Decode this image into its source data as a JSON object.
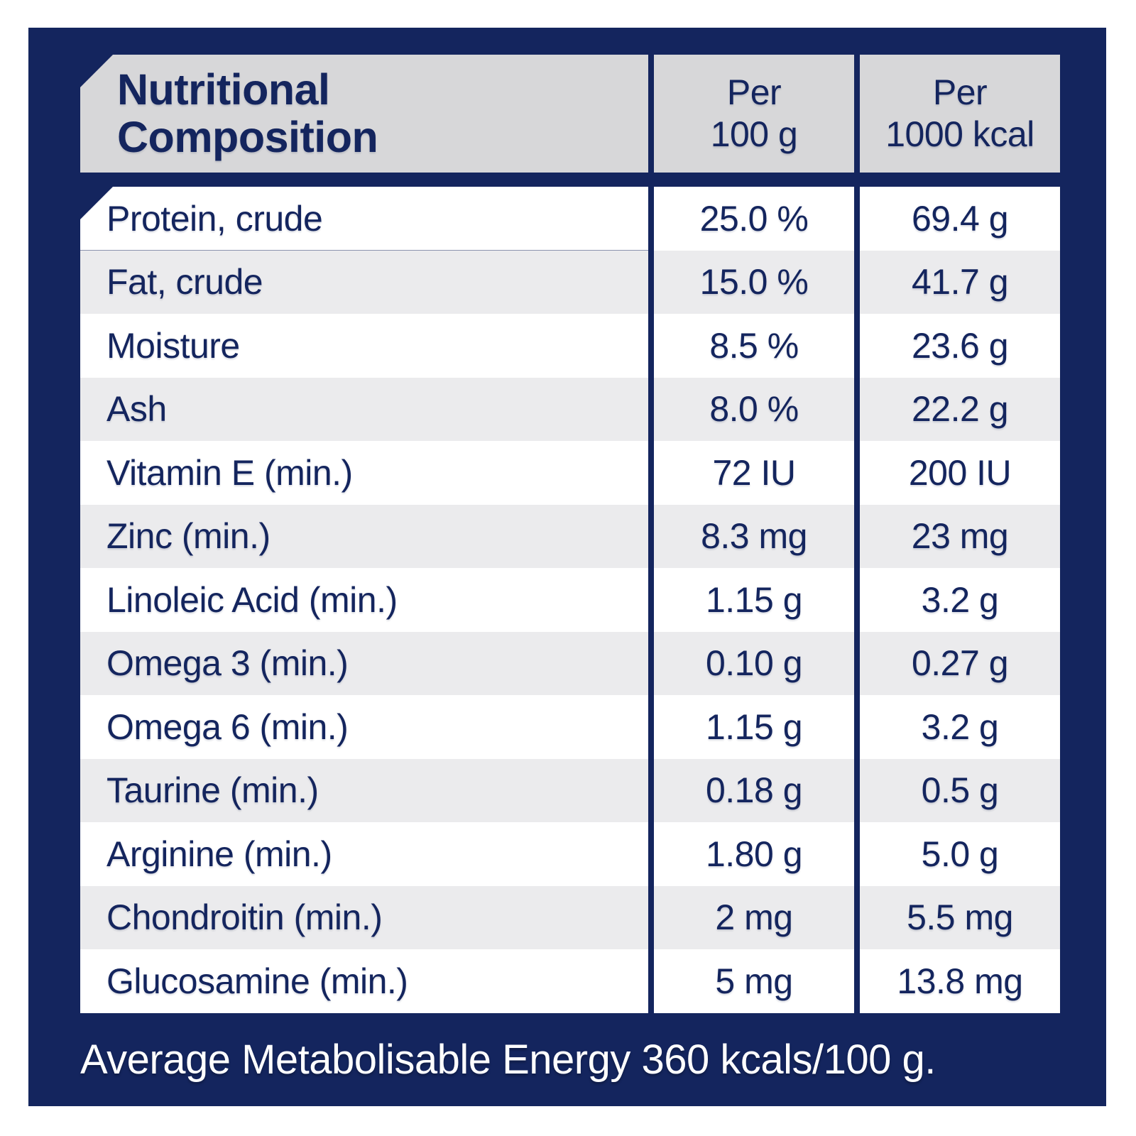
{
  "colors": {
    "panel_navy": "#14255E",
    "header_gray": "#D7D7D9",
    "row_gray": "#EBEBED",
    "row_white": "#FFFFFF",
    "text_navy": "#14255E",
    "footer_text_color": "#FFFFFF"
  },
  "table": {
    "header": {
      "title": "Nutritional Composition",
      "title_line1": "Nutritional",
      "title_line2": "Composition",
      "cols": [
        {
          "line1": "Per",
          "line2": "100 g"
        },
        {
          "line1": "Per",
          "line2": "1000 kcal"
        }
      ]
    },
    "rows": [
      {
        "label": "Protein, crude",
        "per_100g": "25.0 %",
        "per_1000kcal": "69.4 g"
      },
      {
        "label": "Fat, crude",
        "per_100g": "15.0 %",
        "per_1000kcal": "41.7 g"
      },
      {
        "label": "Moisture",
        "per_100g": "8.5 %",
        "per_1000kcal": "23.6 g"
      },
      {
        "label": "Ash",
        "per_100g": "8.0 %",
        "per_1000kcal": "22.2 g"
      },
      {
        "label": "Vitamin E (min.)",
        "per_100g": "72 IU",
        "per_1000kcal": "200 IU"
      },
      {
        "label": "Zinc (min.)",
        "per_100g": "8.3 mg",
        "per_1000kcal": "23 mg"
      },
      {
        "label": "Linoleic Acid (min.)",
        "per_100g": "1.15 g",
        "per_1000kcal": "3.2 g"
      },
      {
        "label": "Omega 3 (min.)",
        "per_100g": "0.10 g",
        "per_1000kcal": "0.27 g"
      },
      {
        "label": "Omega 6 (min.)",
        "per_100g": "1.15 g",
        "per_1000kcal": "3.2 g"
      },
      {
        "label": "Taurine (min.)",
        "per_100g": "0.18 g",
        "per_1000kcal": "0.5 g"
      },
      {
        "label": "Arginine (min.)",
        "per_100g": "1.80 g",
        "per_1000kcal": "5.0 g"
      },
      {
        "label": "Chondroitin (min.)",
        "per_100g": "2 mg",
        "per_1000kcal": "5.5 mg"
      },
      {
        "label": "Glucosamine (min.)",
        "per_100g": "5 mg",
        "per_1000kcal": "13.8 mg"
      }
    ]
  },
  "footer": {
    "text": "Average Metabolisable Energy 360 kcals/100 g."
  }
}
